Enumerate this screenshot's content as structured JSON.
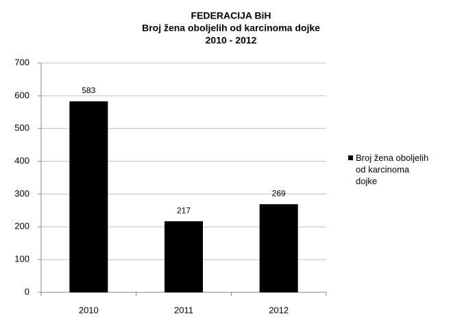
{
  "chart_data": {
    "type": "bar",
    "title": [
      "FEDERACIJA BiH",
      "Broj žena oboljelih  od karcinoma  dojke",
      "2010 - 2012"
    ],
    "categories": [
      "2010",
      "2011",
      "2012"
    ],
    "series": [
      {
        "name": "Broj žena oboljelih od karcinoma dojke",
        "color": "#000000",
        "values": [
          583,
          217,
          269
        ]
      }
    ],
    "ylim": [
      0,
      700
    ],
    "yticks": [
      0,
      100,
      200,
      300,
      400,
      500,
      600,
      700
    ],
    "grid": true,
    "legend": "right"
  }
}
